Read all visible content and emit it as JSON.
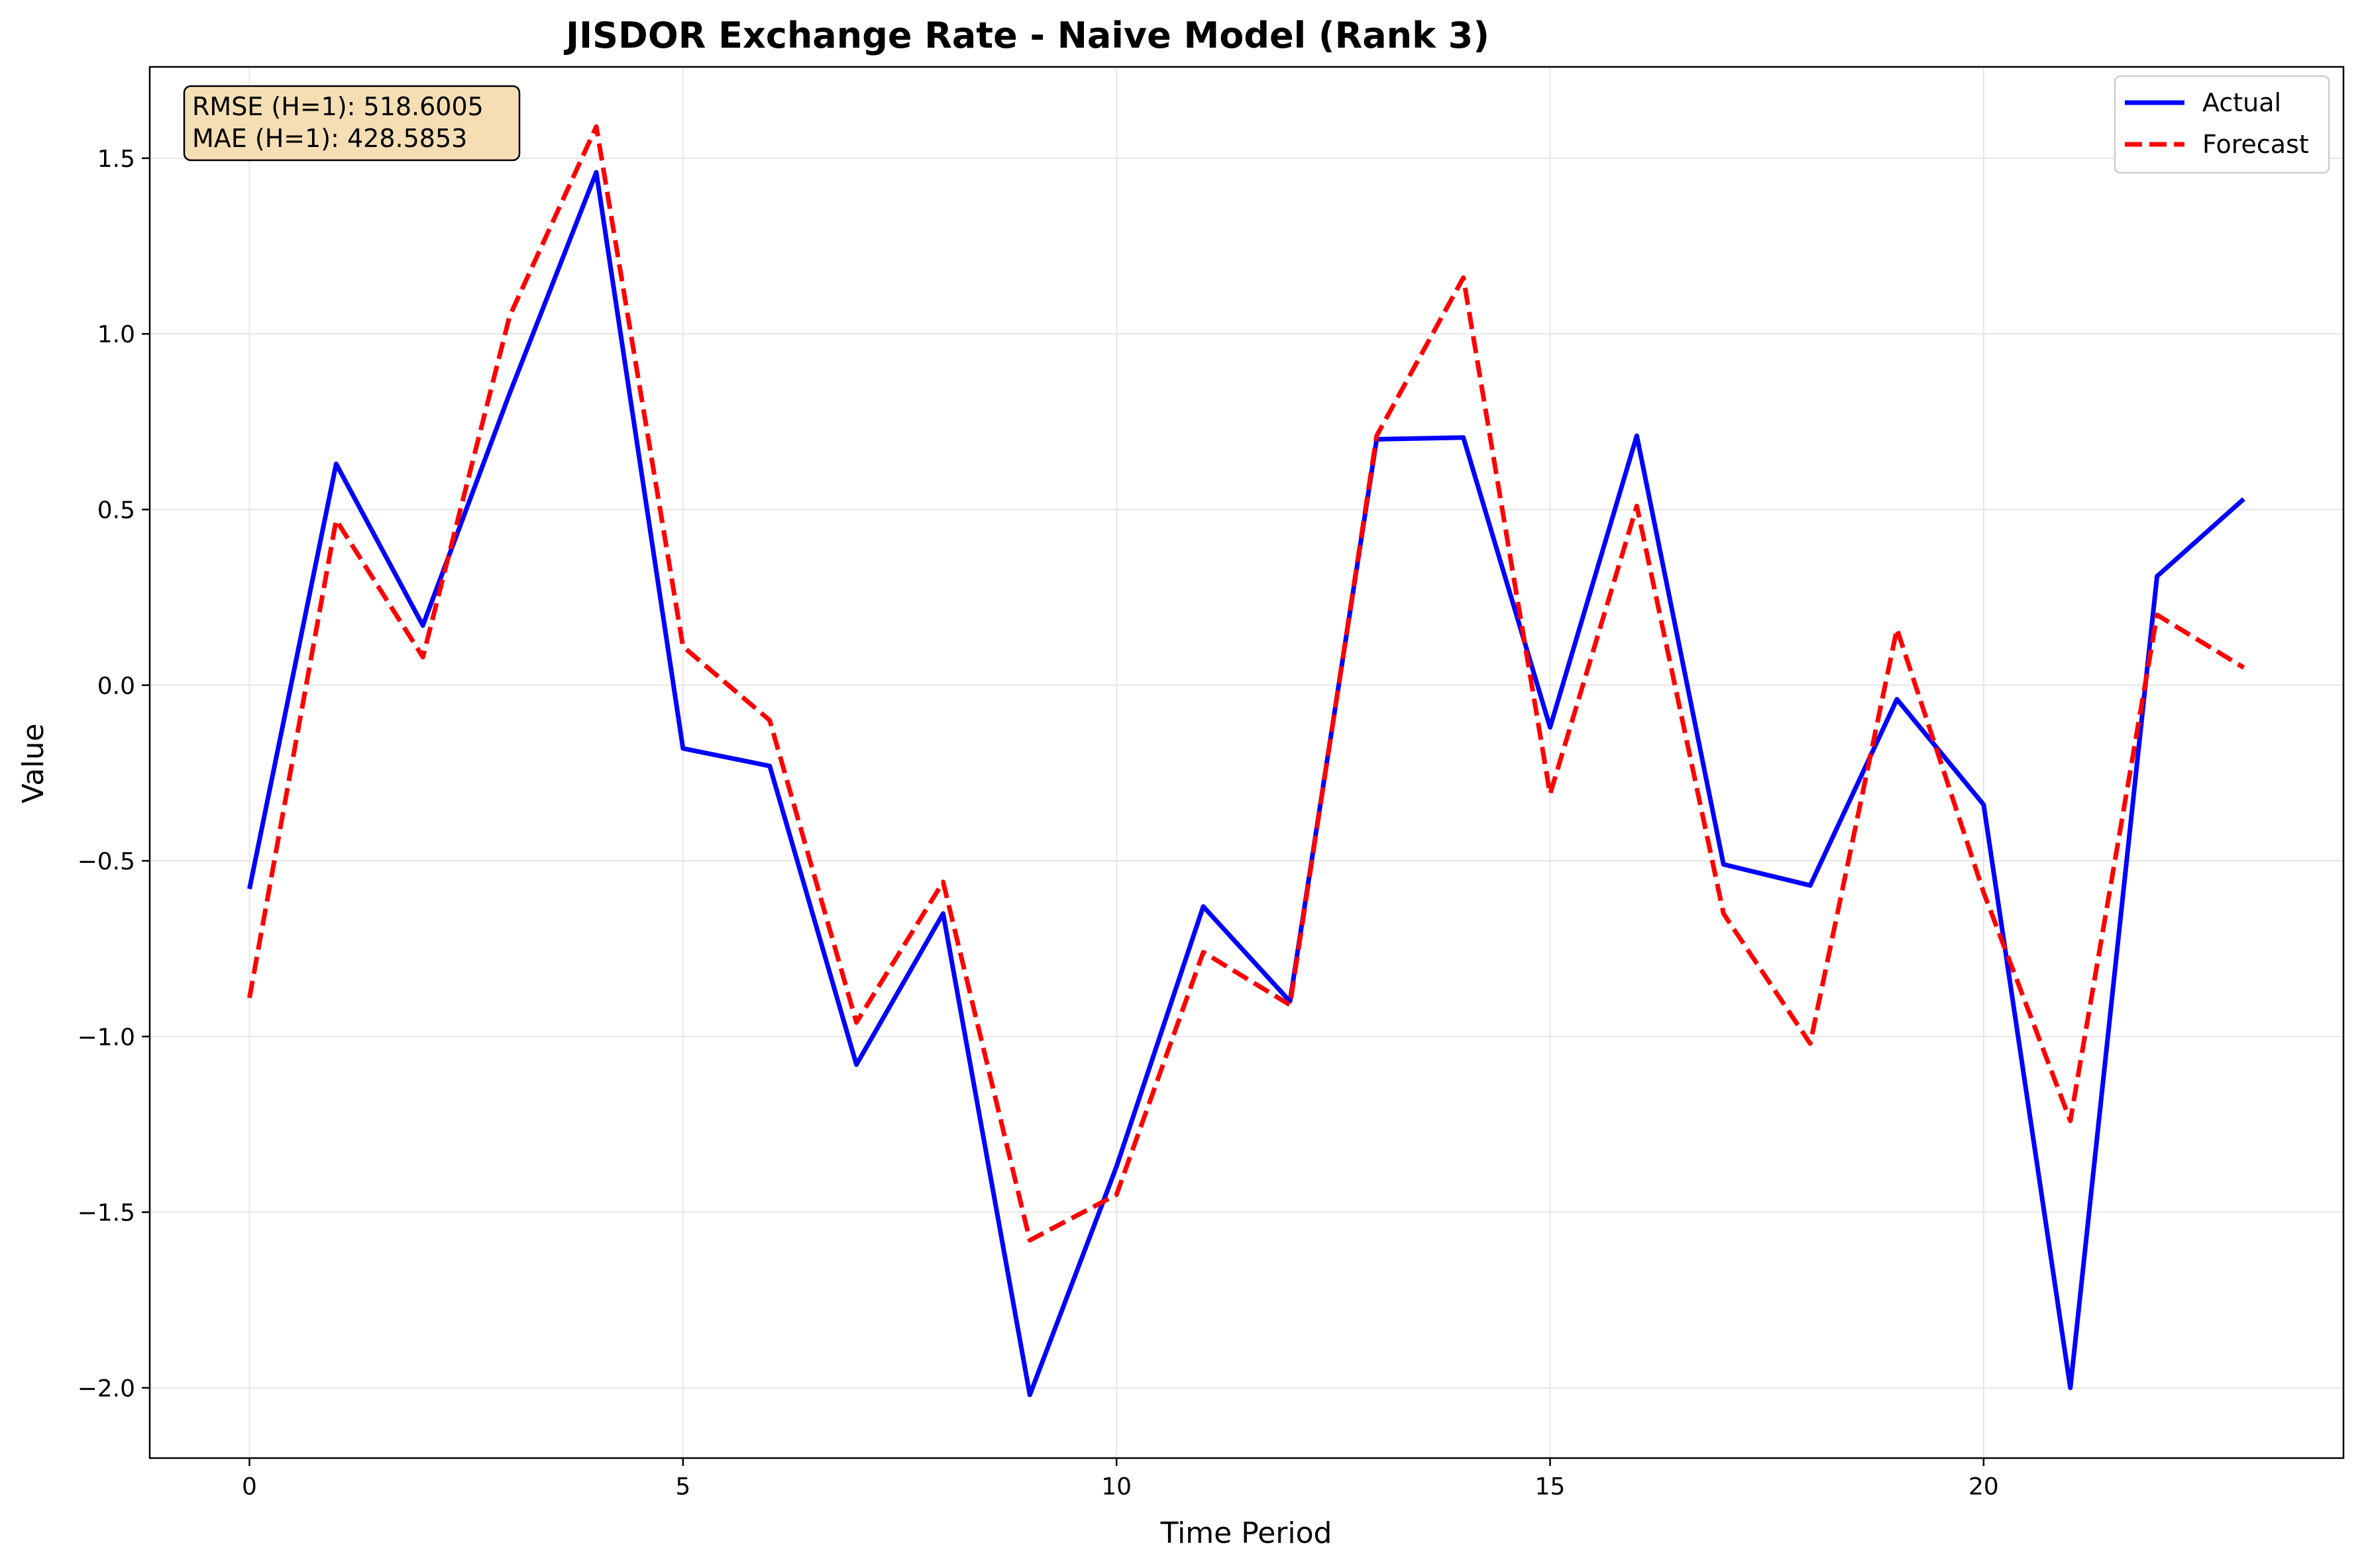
{
  "chart_data": {
    "type": "line",
    "title": "JISDOR Exchange Rate - Naive Model (Rank 3)",
    "xlabel": "Time Period",
    "ylabel": "Value",
    "xlim": [
      -1.15,
      24.15
    ],
    "ylim": [
      -2.2,
      1.76
    ],
    "xticks": [
      0,
      5,
      10,
      15,
      20
    ],
    "yticks": [
      -2.0,
      -1.5,
      -1.0,
      -0.5,
      0.0,
      0.5,
      1.0,
      1.5
    ],
    "ytick_labels": [
      "−2.0",
      "−1.5",
      "−1.0",
      "−0.5",
      "0.0",
      "0.5",
      "1.0",
      "1.5"
    ],
    "grid": true,
    "legend_position": "top-right",
    "x": [
      0,
      1,
      2,
      3,
      4,
      5,
      6,
      7,
      8,
      9,
      10,
      11,
      12,
      13,
      14,
      15,
      16,
      17,
      18,
      19,
      20,
      21,
      22,
      23
    ],
    "series": [
      {
        "name": "Actual",
        "color": "#0000ff",
        "style": "solid",
        "values": [
          -0.58,
          0.63,
          0.17,
          0.83,
          1.46,
          -0.18,
          -0.23,
          -1.08,
          -0.65,
          -2.02,
          -1.37,
          -0.63,
          -0.9,
          0.7,
          0.705,
          -0.12,
          0.71,
          -0.51,
          -0.57,
          -0.04,
          -0.34,
          -2.0,
          0.31,
          0.53
        ]
      },
      {
        "name": "Forecast",
        "color": "#ff0000",
        "style": "dashed",
        "values": [
          -0.89,
          0.47,
          0.08,
          1.05,
          1.59,
          0.11,
          -0.1,
          -0.96,
          -0.56,
          -1.58,
          -1.45,
          -0.76,
          -0.91,
          0.71,
          1.16,
          -0.31,
          0.51,
          -0.65,
          -1.02,
          0.16,
          -0.59,
          -1.24,
          0.2,
          0.05
        ]
      }
    ],
    "annotation": {
      "lines": [
        "RMSE (H=1): 518.6005",
        "MAE (H=1): 428.5853"
      ],
      "position": "top-left",
      "background": "#f5deb3"
    }
  }
}
